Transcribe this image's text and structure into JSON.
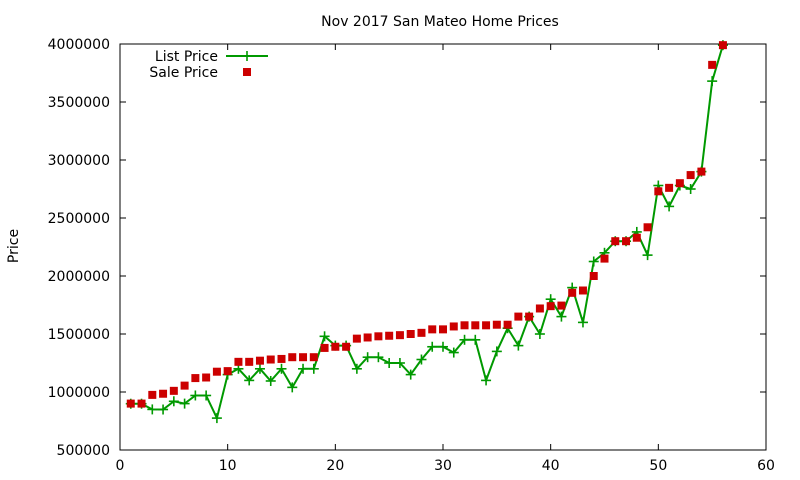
{
  "chart_data": {
    "type": "line",
    "title": "Nov 2017 San Mateo Home Prices",
    "xlabel": "",
    "ylabel": "Price",
    "xlim": [
      0,
      60
    ],
    "ylim": [
      500000,
      4000000
    ],
    "x_ticks": [
      0,
      10,
      20,
      30,
      40,
      50,
      60
    ],
    "y_ticks": [
      500000,
      1000000,
      1500000,
      2000000,
      2500000,
      3000000,
      3500000,
      4000000
    ],
    "grid": false,
    "legend_position": "top-left",
    "series": [
      {
        "name": "List Price",
        "style": "line-with-plus-markers",
        "color": "#009900",
        "x": [
          1,
          2,
          3,
          4,
          5,
          6,
          7,
          8,
          9,
          10,
          11,
          12,
          13,
          14,
          15,
          16,
          17,
          18,
          19,
          20,
          21,
          22,
          23,
          24,
          25,
          26,
          27,
          28,
          29,
          30,
          31,
          32,
          33,
          34,
          35,
          36,
          37,
          38,
          39,
          40,
          41,
          42,
          43,
          44,
          45,
          46,
          47,
          48,
          49,
          50,
          51,
          52,
          53,
          54,
          55,
          56
        ],
        "values": [
          899000,
          899000,
          850000,
          849000,
          920000,
          900000,
          970000,
          970000,
          775000,
          1150000,
          1200000,
          1100000,
          1200000,
          1095000,
          1200000,
          1040000,
          1200000,
          1200000,
          1480000,
          1400000,
          1400000,
          1200000,
          1300000,
          1300000,
          1250000,
          1250000,
          1150000,
          1280000,
          1390000,
          1390000,
          1340000,
          1450000,
          1450000,
          1100000,
          1350000,
          1550000,
          1400000,
          1650000,
          1500000,
          1800000,
          1650000,
          1900000,
          1600000,
          2125000,
          2200000,
          2300000,
          2300000,
          2380000,
          2180000,
          2780000,
          2600000,
          2780000,
          2750000,
          2900000,
          3680000,
          3990000
        ]
      },
      {
        "name": "Sale Price",
        "style": "square-markers",
        "color": "#cc0000",
        "x": [
          1,
          2,
          3,
          4,
          5,
          6,
          7,
          8,
          9,
          10,
          11,
          12,
          13,
          14,
          15,
          16,
          17,
          18,
          19,
          20,
          21,
          22,
          23,
          24,
          25,
          26,
          27,
          28,
          29,
          30,
          31,
          32,
          33,
          34,
          35,
          36,
          37,
          38,
          39,
          40,
          41,
          42,
          43,
          44,
          45,
          46,
          47,
          48,
          49,
          50,
          51,
          52,
          53,
          54,
          55,
          56
        ],
        "values": [
          900000,
          900000,
          975000,
          985000,
          1010000,
          1055000,
          1120000,
          1125000,
          1175000,
          1180000,
          1260000,
          1260000,
          1270000,
          1280000,
          1285000,
          1300000,
          1300000,
          1300000,
          1380000,
          1390000,
          1390000,
          1460000,
          1470000,
          1480000,
          1485000,
          1490000,
          1500000,
          1510000,
          1540000,
          1540000,
          1565000,
          1575000,
          1575000,
          1575000,
          1580000,
          1580000,
          1650000,
          1650000,
          1720000,
          1740000,
          1745000,
          1855000,
          1875000,
          2000000,
          2150000,
          2300000,
          2300000,
          2330000,
          2420000,
          2730000,
          2760000,
          2800000,
          2870000,
          2900000,
          3820000,
          3990000
        ]
      }
    ]
  }
}
